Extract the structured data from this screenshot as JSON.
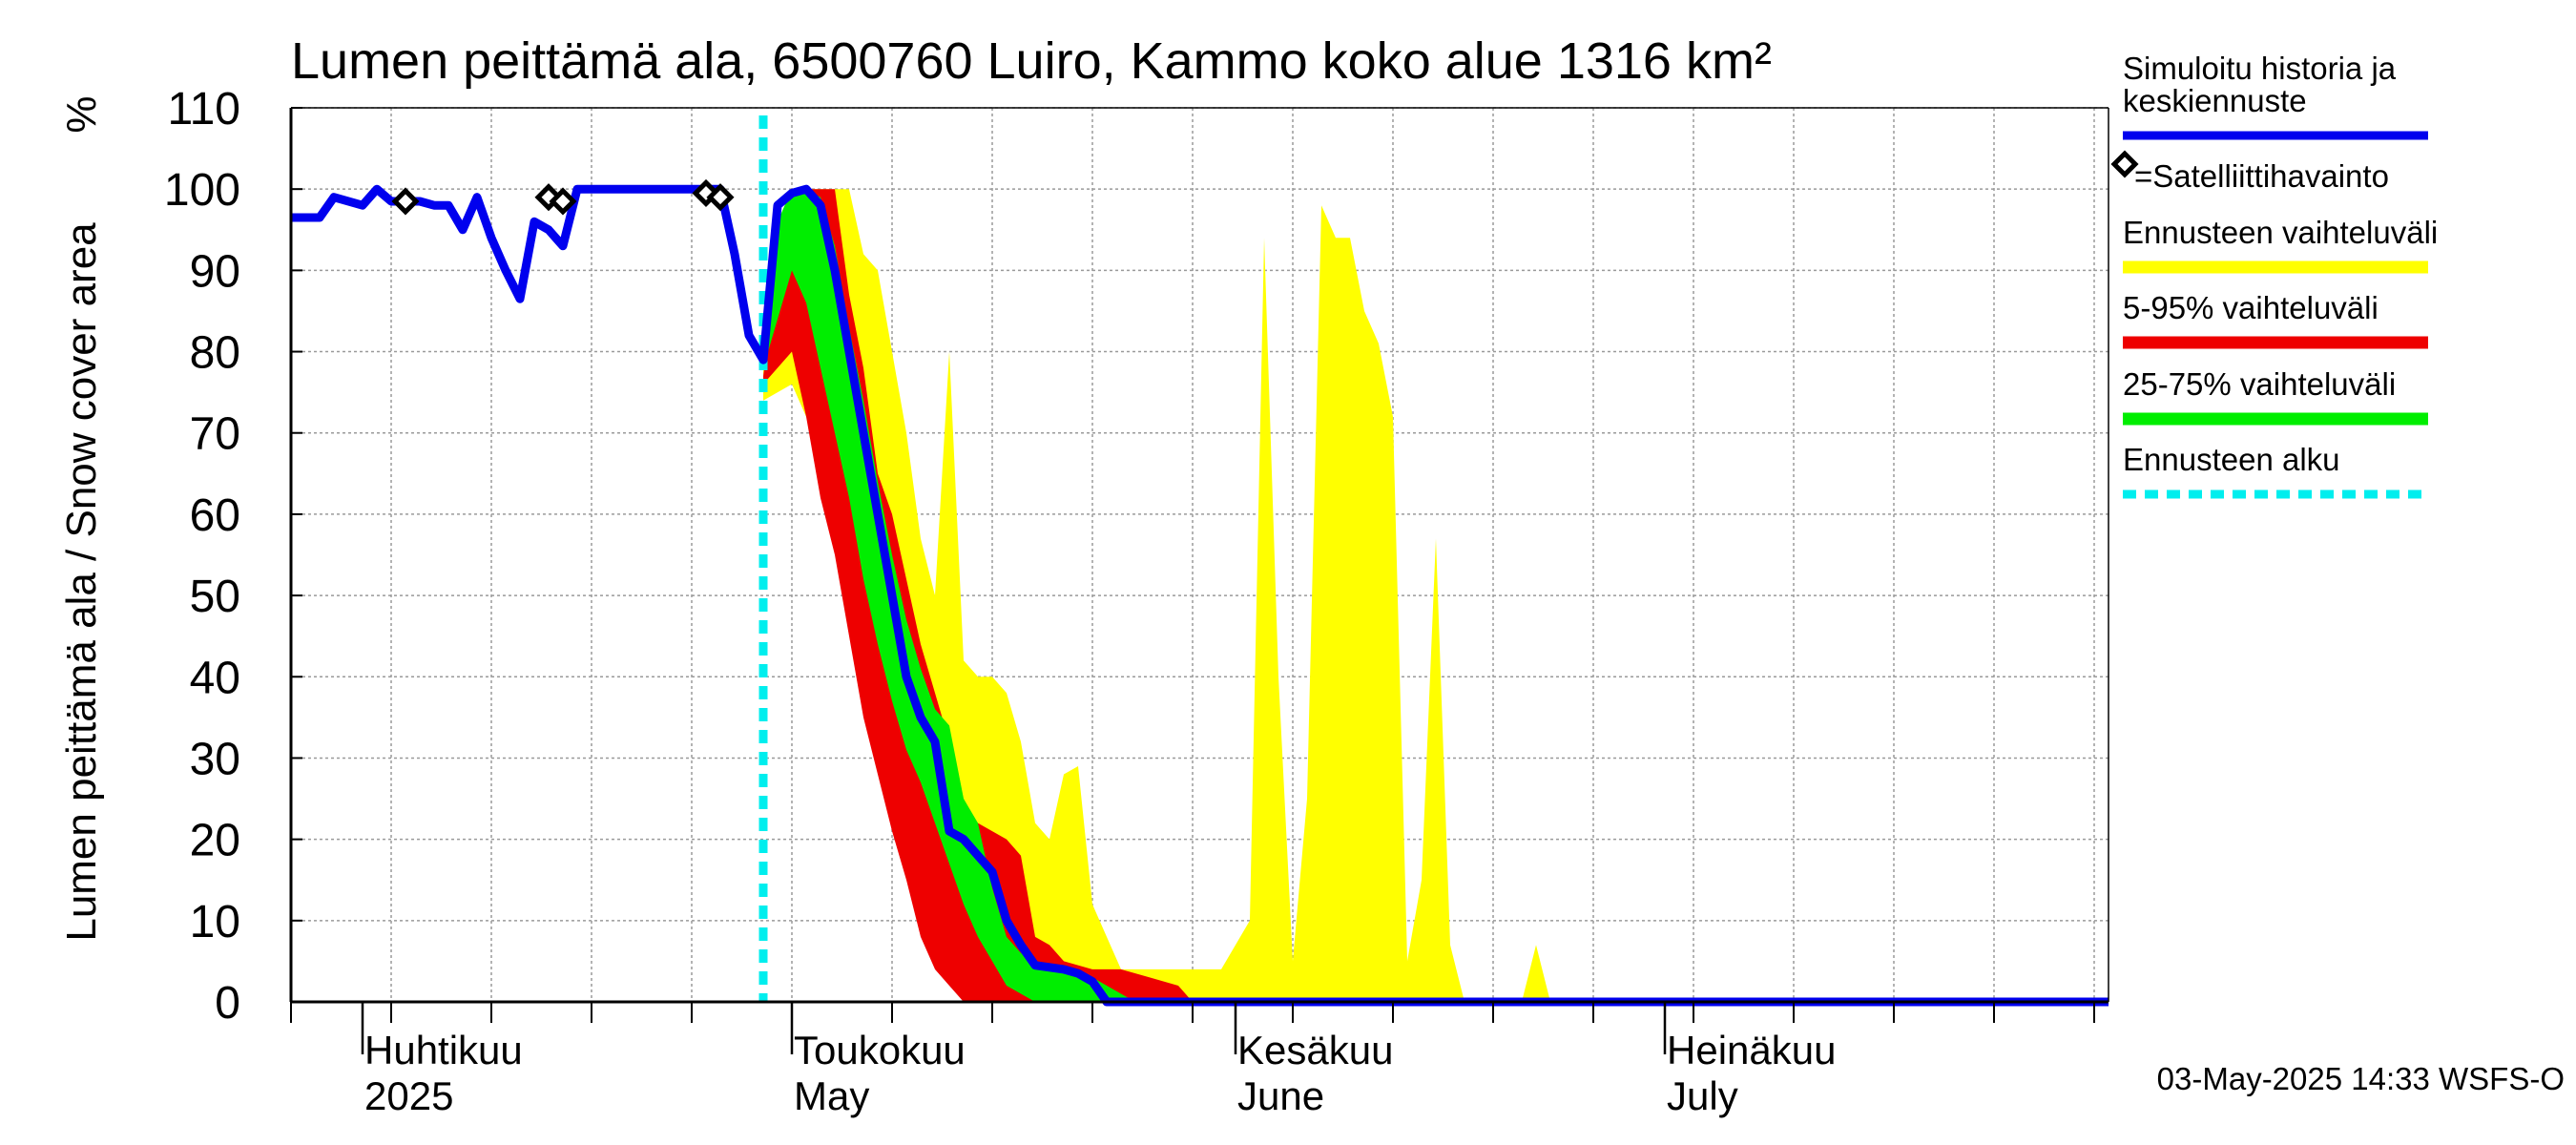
{
  "chart_data": {
    "type": "area",
    "title": "Lumen peittämä ala, 6500760 Luiro, Kammo koko alue 1316 km²",
    "ylabel": "Lumen peittämä ala / Snow cover area",
    "yunit": "%",
    "ylim": [
      0,
      110
    ],
    "yticks": [
      "0",
      "10",
      "20",
      "30",
      "40",
      "50",
      "60",
      "70",
      "80",
      "90",
      "100",
      "110"
    ],
    "xlim": [
      "2025-03-27",
      "2025-08-01"
    ],
    "grid": true,
    "x_labels": [
      {
        "date": "2025-04-01",
        "line1": "Huhtikuu",
        "line2": "2025"
      },
      {
        "date": "2025-05-01",
        "line1": "Toukokuu",
        "line2": "May"
      },
      {
        "date": "2025-06-01",
        "line1": "Kesäkuu",
        "line2": "June"
      },
      {
        "date": "2025-07-01",
        "line1": "Heinäkuu",
        "line2": "July"
      }
    ],
    "forecast_start": "2025-04-29",
    "legend": {
      "placement": "right",
      "entries": [
        {
          "label": "Simuloitu historia ja keskiennuste",
          "label_lines": [
            "Simuloitu historia ja",
            "keskiennuste"
          ],
          "color": "#0000ee",
          "kind": "line"
        },
        {
          "label": "=Satelliittihavainto",
          "color": "#000000",
          "kind": "diamond"
        },
        {
          "label": "Ennusteen vaihteluväli",
          "color": "#ffff00",
          "kind": "band"
        },
        {
          "label": "5-95% vaihteluväli",
          "color": "#ee0000",
          "kind": "band"
        },
        {
          "label": "25-75% vaihteluväli",
          "color": "#00ee00",
          "kind": "band"
        },
        {
          "label": "Ennusteen alku",
          "color": "#00eeee",
          "kind": "dashed"
        }
      ]
    },
    "series": [
      {
        "name": "Simuloitu historia ja keskiennuste",
        "color": "#0000ee",
        "points": [
          [
            "2025-03-27",
            96.5
          ],
          [
            "2025-03-29",
            96.5
          ],
          [
            "2025-03-30",
            99
          ],
          [
            "2025-04-01",
            98
          ],
          [
            "2025-04-02",
            100
          ],
          [
            "2025-04-03",
            98.5
          ],
          [
            "2025-04-04",
            98.5
          ],
          [
            "2025-04-05",
            98.5
          ],
          [
            "2025-04-06",
            98
          ],
          [
            "2025-04-07",
            98
          ],
          [
            "2025-04-08",
            95
          ],
          [
            "2025-04-09",
            99
          ],
          [
            "2025-04-10",
            94
          ],
          [
            "2025-04-11",
            90
          ],
          [
            "2025-04-12",
            86.5
          ],
          [
            "2025-04-13",
            96
          ],
          [
            "2025-04-14",
            95
          ],
          [
            "2025-04-15",
            93
          ],
          [
            "2025-04-16",
            100
          ],
          [
            "2025-04-26",
            100
          ],
          [
            "2025-04-27",
            92
          ],
          [
            "2025-04-28",
            82
          ],
          [
            "2025-04-29",
            79
          ],
          [
            "2025-04-30",
            98
          ],
          [
            "2025-05-01",
            99.5
          ],
          [
            "2025-05-02",
            100
          ],
          [
            "2025-05-03",
            98
          ],
          [
            "2025-05-04",
            90
          ],
          [
            "2025-05-05",
            80
          ],
          [
            "2025-05-06",
            70
          ],
          [
            "2025-05-07",
            60
          ],
          [
            "2025-05-08",
            50
          ],
          [
            "2025-05-09",
            40
          ],
          [
            "2025-05-10",
            35
          ],
          [
            "2025-05-11",
            32
          ],
          [
            "2025-05-12",
            21
          ],
          [
            "2025-05-13",
            20
          ],
          [
            "2025-05-14",
            18
          ],
          [
            "2025-05-15",
            16
          ],
          [
            "2025-05-16",
            10
          ],
          [
            "2025-05-17",
            7
          ],
          [
            "2025-05-18",
            4.5
          ],
          [
            "2025-05-20",
            4
          ],
          [
            "2025-05-21",
            3.5
          ],
          [
            "2025-05-22",
            2.5
          ],
          [
            "2025-05-23",
            0
          ],
          [
            "2025-08-01",
            0
          ]
        ]
      },
      {
        "name": "Satelliittihavainto",
        "color": "#000000",
        "points": [
          [
            "2025-04-04",
            98.5
          ],
          [
            "2025-04-14",
            99
          ],
          [
            "2025-04-15",
            98.5
          ],
          [
            "2025-04-25",
            99.5
          ],
          [
            "2025-04-26",
            99
          ]
        ]
      },
      {
        "name": "Ennusteen vaihteluväli",
        "color": "#ffff00",
        "upper": [
          [
            "2025-04-29",
            80
          ],
          [
            "2025-04-30",
            95
          ],
          [
            "2025-05-01",
            100
          ],
          [
            "2025-05-05",
            100
          ],
          [
            "2025-05-06",
            92
          ],
          [
            "2025-05-07",
            90
          ],
          [
            "2025-05-08",
            80
          ],
          [
            "2025-05-09",
            70
          ],
          [
            "2025-05-10",
            57
          ],
          [
            "2025-05-11",
            50
          ],
          [
            "2025-05-12",
            80
          ],
          [
            "2025-05-13",
            42
          ],
          [
            "2025-05-14",
            40
          ],
          [
            "2025-05-15",
            40
          ],
          [
            "2025-05-16",
            38
          ],
          [
            "2025-05-17",
            32
          ],
          [
            "2025-05-18",
            22
          ],
          [
            "2025-05-19",
            20
          ],
          [
            "2025-05-20",
            28
          ],
          [
            "2025-05-21",
            29
          ],
          [
            "2025-05-22",
            12
          ],
          [
            "2025-05-23",
            8
          ],
          [
            "2025-05-24",
            4
          ],
          [
            "2025-05-31",
            4
          ],
          [
            "2025-06-02",
            10
          ],
          [
            "2025-06-03",
            94
          ],
          [
            "2025-06-04",
            40
          ],
          [
            "2025-06-05",
            5
          ],
          [
            "2025-06-06",
            25
          ],
          [
            "2025-06-07",
            98
          ],
          [
            "2025-06-08",
            94
          ],
          [
            "2025-06-09",
            94
          ],
          [
            "2025-06-10",
            85
          ],
          [
            "2025-06-11",
            81
          ],
          [
            "2025-06-12",
            72
          ],
          [
            "2025-06-13",
            5
          ],
          [
            "2025-06-14",
            15
          ],
          [
            "2025-06-15",
            57
          ],
          [
            "2025-06-16",
            7
          ],
          [
            "2025-06-17",
            0
          ],
          [
            "2025-06-21",
            0
          ],
          [
            "2025-06-22",
            7
          ],
          [
            "2025-06-23",
            0
          ],
          [
            "2025-08-01",
            0
          ]
        ],
        "lower": [
          [
            "2025-04-29",
            74
          ],
          [
            "2025-05-01",
            76
          ],
          [
            "2025-05-02",
            72
          ],
          [
            "2025-05-03",
            70
          ],
          [
            "2025-05-04",
            62
          ],
          [
            "2025-05-05",
            55
          ],
          [
            "2025-05-06",
            45
          ],
          [
            "2025-05-07",
            36
          ],
          [
            "2025-05-08",
            30
          ],
          [
            "2025-05-09",
            20
          ],
          [
            "2025-05-10",
            12
          ],
          [
            "2025-05-11",
            8
          ],
          [
            "2025-05-12",
            5
          ],
          [
            "2025-05-13",
            4
          ],
          [
            "2025-05-14",
            2
          ],
          [
            "2025-05-15",
            0
          ],
          [
            "2025-08-01",
            0
          ]
        ]
      },
      {
        "name": "5-95% vaihteluväli",
        "color": "#ee0000",
        "upper": [
          [
            "2025-04-29",
            77
          ],
          [
            "2025-04-30",
            90
          ],
          [
            "2025-05-01",
            98
          ],
          [
            "2025-05-02",
            100
          ],
          [
            "2025-05-04",
            100
          ],
          [
            "2025-05-05",
            87
          ],
          [
            "2025-05-06",
            78
          ],
          [
            "2025-05-07",
            65
          ],
          [
            "2025-05-08",
            60
          ],
          [
            "2025-05-09",
            52
          ],
          [
            "2025-05-10",
            44
          ],
          [
            "2025-05-11",
            38
          ],
          [
            "2025-05-12",
            32
          ],
          [
            "2025-05-13",
            24
          ],
          [
            "2025-05-14",
            22
          ],
          [
            "2025-05-15",
            21
          ],
          [
            "2025-05-16",
            20
          ],
          [
            "2025-05-17",
            18
          ],
          [
            "2025-05-18",
            8
          ],
          [
            "2025-05-19",
            7
          ],
          [
            "2025-05-20",
            5
          ],
          [
            "2025-05-22",
            4
          ],
          [
            "2025-05-24",
            4
          ],
          [
            "2025-05-26",
            3
          ],
          [
            "2025-05-28",
            2
          ],
          [
            "2025-05-29",
            0
          ],
          [
            "2025-08-01",
            0
          ]
        ],
        "lower": [
          [
            "2025-04-29",
            76
          ],
          [
            "2025-05-01",
            80
          ],
          [
            "2025-05-02",
            72
          ],
          [
            "2025-05-03",
            62
          ],
          [
            "2025-05-04",
            55
          ],
          [
            "2025-05-05",
            45
          ],
          [
            "2025-05-06",
            35
          ],
          [
            "2025-05-07",
            28
          ],
          [
            "2025-05-08",
            21
          ],
          [
            "2025-05-09",
            15
          ],
          [
            "2025-05-10",
            8
          ],
          [
            "2025-05-11",
            4
          ],
          [
            "2025-05-12",
            2
          ],
          [
            "2025-05-13",
            0
          ],
          [
            "2025-08-01",
            0
          ]
        ]
      },
      {
        "name": "25-75% vaihteluväli",
        "color": "#00ee00",
        "upper": [
          [
            "2025-04-29",
            79
          ],
          [
            "2025-04-30",
            96
          ],
          [
            "2025-05-01",
            100
          ],
          [
            "2025-05-02",
            100
          ],
          [
            "2025-05-03",
            99
          ],
          [
            "2025-05-04",
            93
          ],
          [
            "2025-05-05",
            83
          ],
          [
            "2025-05-06",
            74
          ],
          [
            "2025-05-07",
            64
          ],
          [
            "2025-05-08",
            55
          ],
          [
            "2025-05-09",
            47
          ],
          [
            "2025-05-10",
            41
          ],
          [
            "2025-05-11",
            36
          ],
          [
            "2025-05-12",
            34
          ],
          [
            "2025-05-13",
            25
          ],
          [
            "2025-05-14",
            22
          ],
          [
            "2025-05-15",
            14
          ],
          [
            "2025-05-16",
            8
          ],
          [
            "2025-05-17",
            6
          ],
          [
            "2025-05-18",
            5
          ],
          [
            "2025-05-20",
            4
          ],
          [
            "2025-05-22",
            3
          ],
          [
            "2025-05-24",
            1
          ],
          [
            "2025-05-25",
            0
          ],
          [
            "2025-08-01",
            0
          ]
        ],
        "lower": [
          [
            "2025-04-29",
            78
          ],
          [
            "2025-04-30",
            84
          ],
          [
            "2025-05-01",
            90
          ],
          [
            "2025-05-02",
            86
          ],
          [
            "2025-05-03",
            78
          ],
          [
            "2025-05-04",
            70
          ],
          [
            "2025-05-05",
            62
          ],
          [
            "2025-05-06",
            52
          ],
          [
            "2025-05-07",
            44
          ],
          [
            "2025-05-08",
            37
          ],
          [
            "2025-05-09",
            31
          ],
          [
            "2025-05-10",
            27
          ],
          [
            "2025-05-11",
            22
          ],
          [
            "2025-05-12",
            17
          ],
          [
            "2025-05-13",
            12
          ],
          [
            "2025-05-14",
            8
          ],
          [
            "2025-05-15",
            5
          ],
          [
            "2025-05-16",
            2
          ],
          [
            "2025-05-17",
            1
          ],
          [
            "2025-05-18",
            0
          ],
          [
            "2025-08-01",
            0
          ]
        ]
      }
    ],
    "footer": "03-May-2025 14:33 WSFS-O"
  }
}
